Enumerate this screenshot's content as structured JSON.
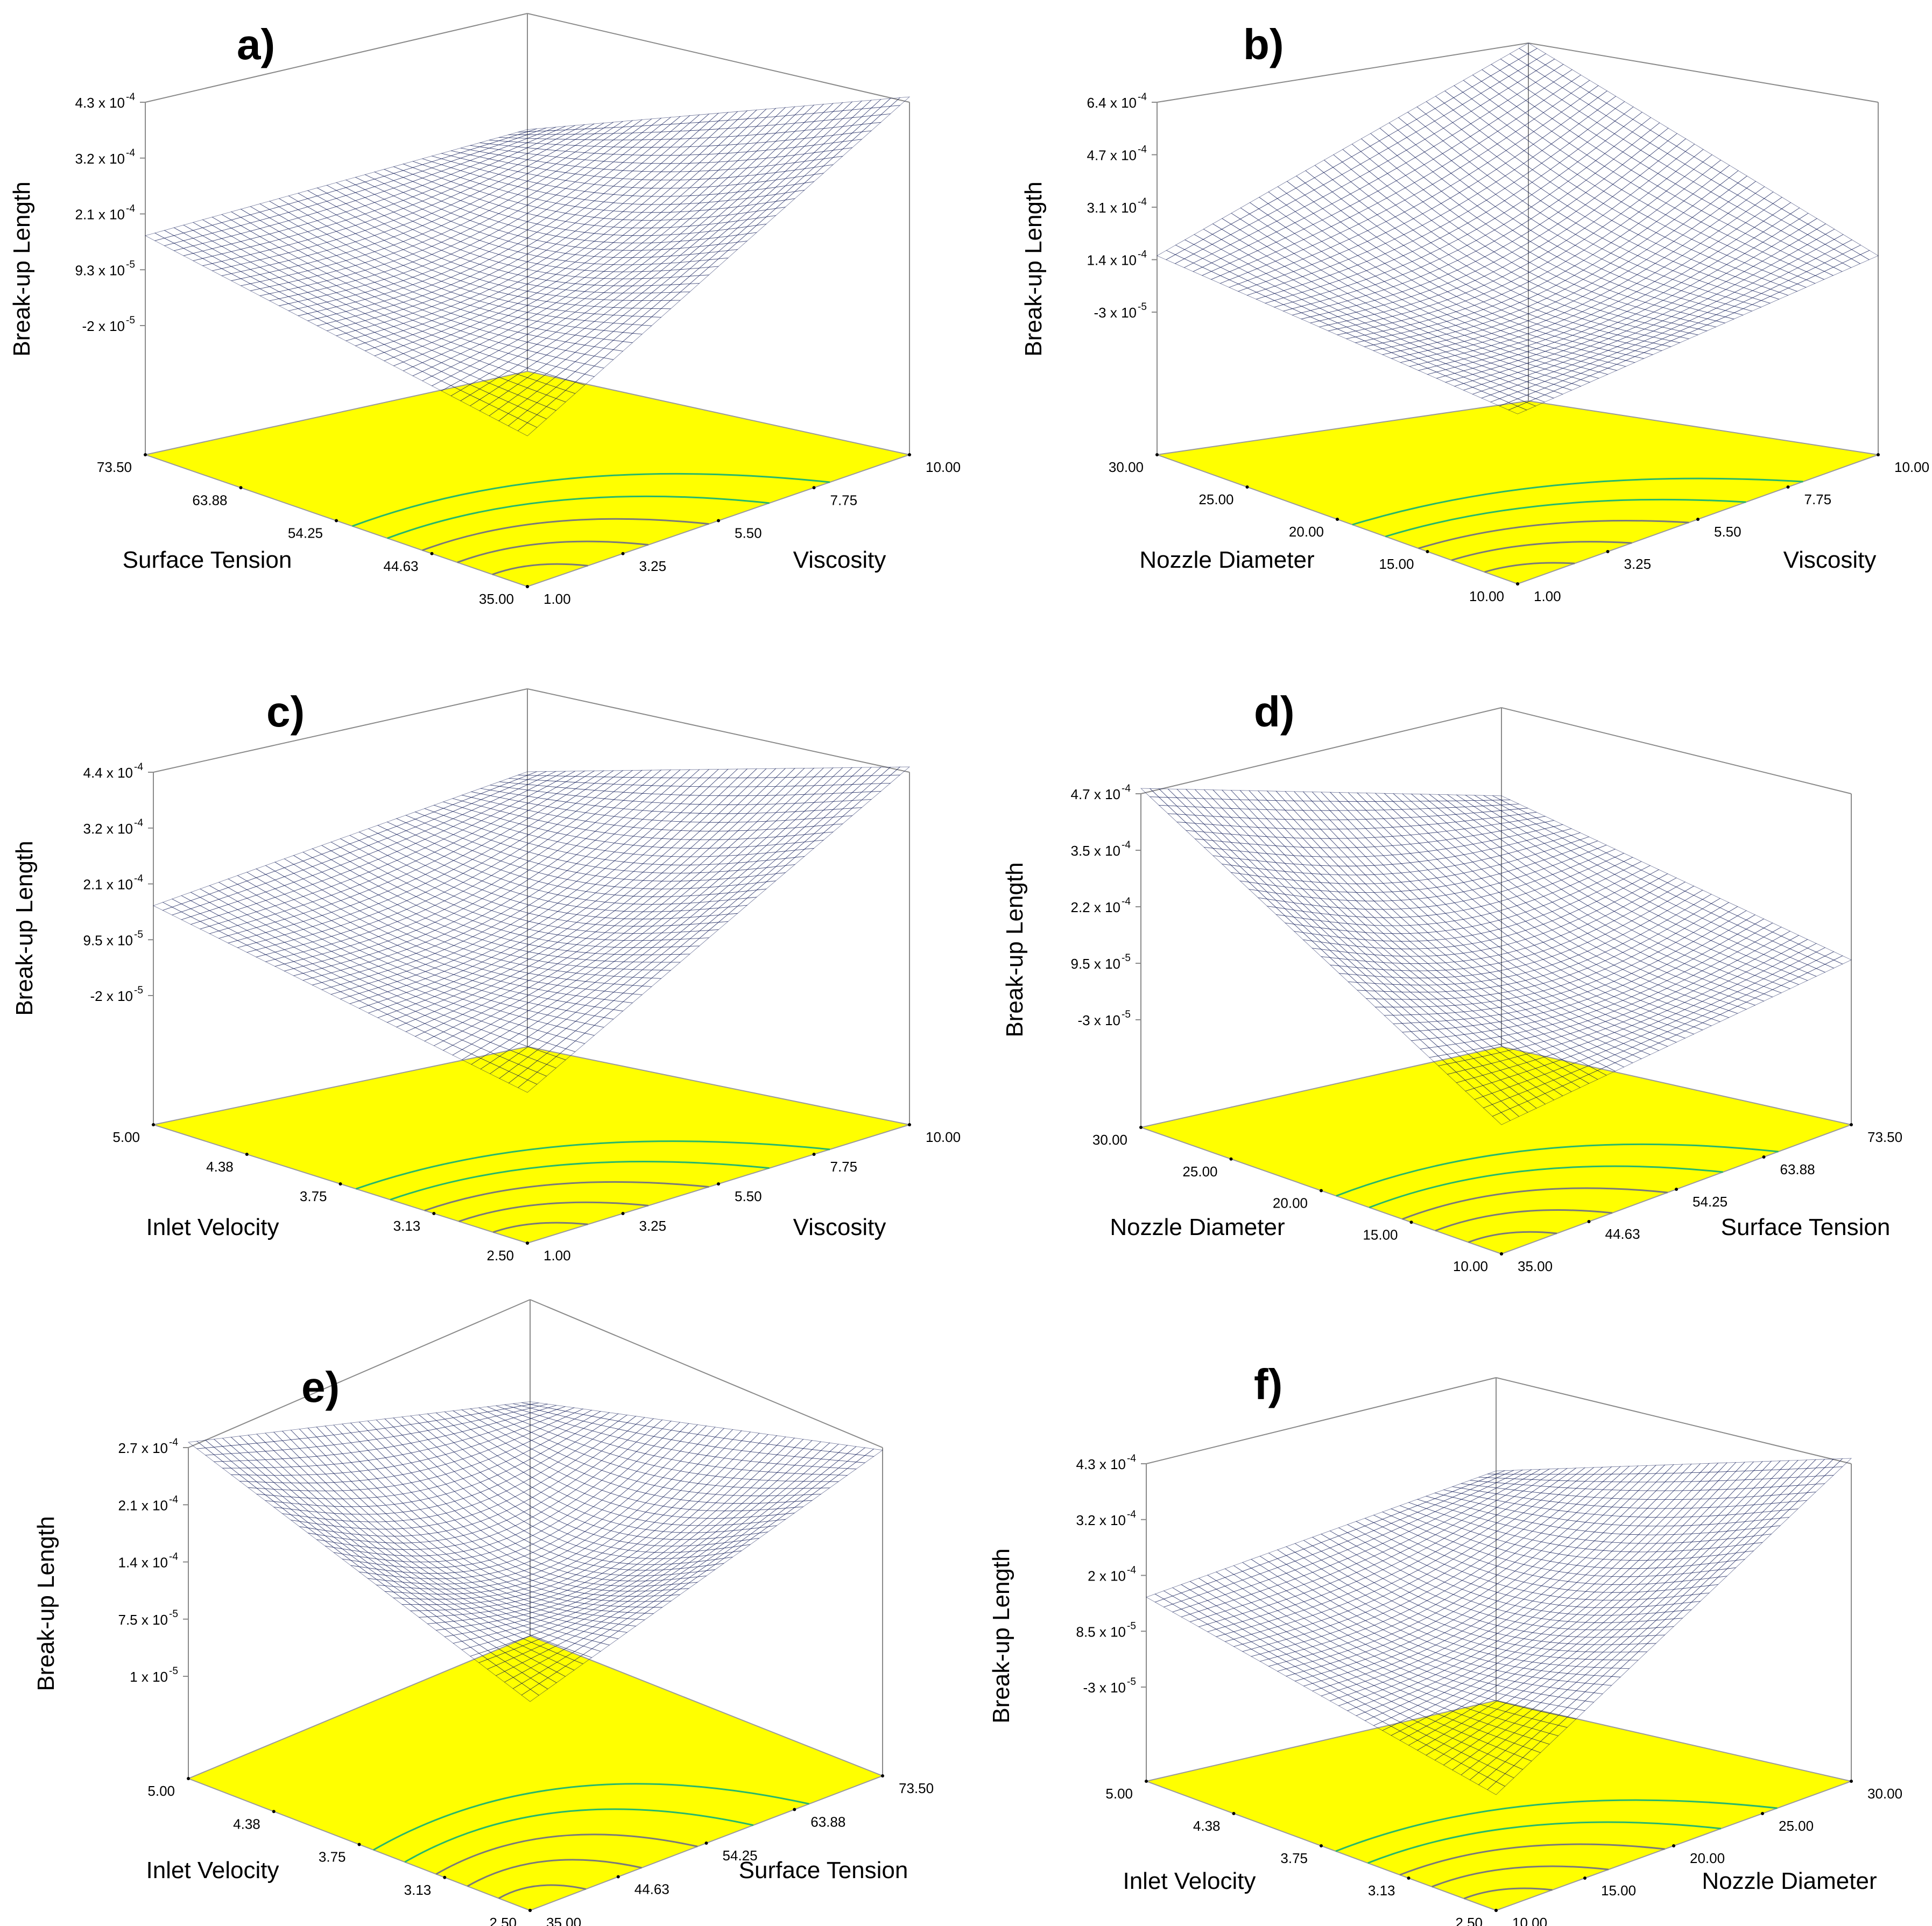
{
  "chart_data": [
    {
      "type": "surface3d",
      "panel": "a)",
      "zlabel": "Break-up Length",
      "x_label": "Surface Tension",
      "x_ticks": [
        "73.50",
        "63.88",
        "54.25",
        "44.63",
        "35.00"
      ],
      "y_label": "Viscosity",
      "y_ticks": [
        "1.00",
        "3.25",
        "5.50",
        "7.75",
        "10.00"
      ],
      "z_ticks": [
        {
          "m": "4.3 x 10",
          "e": "-4"
        },
        {
          "m": "3.2 x 10",
          "e": "-4"
        },
        {
          "m": "2.1 x 10",
          "e": "-4"
        },
        {
          "m": "9.3 x 10",
          "e": "-5"
        },
        {
          "m": "-2 x 10",
          "e": "-5"
        }
      ],
      "corners": {
        "back_left": 0.33,
        "front": 0.0,
        "back_right": 1.0,
        "back": 0.44
      },
      "colormap": [
        "#0000c8",
        "#1464e6",
        "#2ab4e8",
        "#00c8a0"
      ]
    },
    {
      "type": "surface3d",
      "panel": "b)",
      "zlabel": "Break-up Length",
      "x_label": "Nozzle Diameter",
      "x_ticks": [
        "30.00",
        "25.00",
        "20.00",
        "15.00",
        "10.00"
      ],
      "y_label": "Viscosity",
      "y_ticks": [
        "1.00",
        "3.25",
        "5.50",
        "7.75",
        "10.00"
      ],
      "z_ticks": [
        {
          "m": "6.4 x 10",
          "e": "-4"
        },
        {
          "m": "4.7 x 10",
          "e": "-4"
        },
        {
          "m": "3.1 x 10",
          "e": "-4"
        },
        {
          "m": "1.4 x 10",
          "e": "-4"
        },
        {
          "m": "-3 x 10",
          "e": "-5"
        }
      ],
      "corners": {
        "back_left": 0.18,
        "front": 0.03,
        "back_right": 0.18,
        "back": 1.0
      },
      "colormap": [
        "#0000c8",
        "#1464e6",
        "#00e6f0",
        "#00c832"
      ]
    },
    {
      "type": "surface3d",
      "panel": "c)",
      "zlabel": "Break-up Length",
      "x_label": "Inlet Velocity",
      "x_ticks": [
        "5.00",
        "4.38",
        "3.75",
        "3.13",
        "2.50"
      ],
      "y_label": "Viscosity",
      "y_ticks": [
        "1.00",
        "3.25",
        "5.50",
        "7.75",
        "10.00"
      ],
      "z_ticks": [
        {
          "m": "4.4 x 10",
          "e": "-4"
        },
        {
          "m": "3.2 x 10",
          "e": "-4"
        },
        {
          "m": "2.1 x 10",
          "e": "-4"
        },
        {
          "m": "9.5 x 10",
          "e": "-5"
        },
        {
          "m": "-2 x 10",
          "e": "-5"
        }
      ],
      "corners": {
        "back_left": 0.33,
        "front": 0.0,
        "back_right": 1.0,
        "back": 0.6
      },
      "colormap": [
        "#0000c8",
        "#1464e6",
        "#2ab4e8",
        "#00c8a0"
      ]
    },
    {
      "type": "surface3d",
      "panel": "d)",
      "zlabel": "Break-up Length",
      "x_label": "Nozzle Diameter",
      "x_ticks": [
        "30.00",
        "25.00",
        "20.00",
        "15.00",
        "10.00"
      ],
      "y_label": "Surface Tension",
      "y_ticks": [
        "35.00",
        "44.63",
        "54.25",
        "63.88",
        "73.50"
      ],
      "z_ticks": [
        {
          "m": "4.7 x 10",
          "e": "-4"
        },
        {
          "m": "3.5 x 10",
          "e": "-4"
        },
        {
          "m": "2.2 x 10",
          "e": "-4"
        },
        {
          "m": "9.5 x 10",
          "e": "-5"
        },
        {
          "m": "-3 x 10",
          "e": "-5"
        }
      ],
      "corners": {
        "back_left": 1.0,
        "front": 0.0,
        "back_right": 0.17,
        "back": 0.58
      },
      "colormap": [
        "#0000c8",
        "#1464e6",
        "#2ab4e8",
        "#00c8a0"
      ]
    },
    {
      "type": "surface3d",
      "panel": "e)",
      "zlabel": "Break-up Length",
      "x_label": "Inlet Velocity",
      "x_ticks": [
        "5.00",
        "4.38",
        "3.75",
        "3.13",
        "2.50"
      ],
      "y_label": "Surface Tension",
      "y_ticks": [
        "35.00",
        "44.63",
        "54.25",
        "63.88",
        "73.50"
      ],
      "z_ticks": [
        {
          "m": "2.7 x 10",
          "e": "-4"
        },
        {
          "m": "2.1 x 10",
          "e": "-4"
        },
        {
          "m": "1.4 x 10",
          "e": "-4"
        },
        {
          "m": "7.5 x 10",
          "e": "-5"
        },
        {
          "m": "1 x 10",
          "e": "-5"
        }
      ],
      "corners": {
        "back_left": 1.0,
        "front": 0.4,
        "back_right": 0.95,
        "back": 0.52
      },
      "colormap": [
        "#001060",
        "#0a2ca0",
        "#1464e6",
        "#2a90e0"
      ]
    },
    {
      "type": "surface3d",
      "panel": "f)",
      "zlabel": "Break-up Length",
      "x_label": "Inlet Velocity",
      "x_ticks": [
        "5.00",
        "4.38",
        "3.75",
        "3.13",
        "2.50"
      ],
      "y_label": "Nozzle Diameter",
      "y_ticks": [
        "10.00",
        "15.00",
        "20.00",
        "25.00",
        "30.00"
      ],
      "z_ticks": [
        {
          "m": "4.3 x 10",
          "e": "-4"
        },
        {
          "m": "3.2 x 10",
          "e": "-4"
        },
        {
          "m": "2 x 10",
          "e": "-4"
        },
        {
          "m": "8.5 x 10",
          "e": "-5"
        },
        {
          "m": "-3 x 10",
          "e": "-5"
        }
      ],
      "corners": {
        "back_left": 0.33,
        "front": 0.0,
        "back_right": 1.0,
        "back": 0.55
      },
      "colormap": [
        "#0000c8",
        "#1464e6",
        "#2ab4e8",
        "#00c8a0"
      ]
    }
  ]
}
